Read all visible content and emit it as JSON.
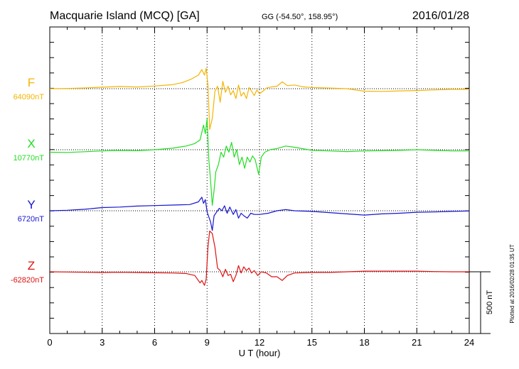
{
  "header": {
    "station": "Macquarie Island (MCQ)  [GA]",
    "coords": "GG (-54.50°, 158.95°)",
    "date": "2016/01/28"
  },
  "plot_note": "Plotted at 2016/02/28 01:35 UT",
  "chart_data": {
    "type": "line",
    "xlabel": "U T (hour)",
    "xlim": [
      0,
      24
    ],
    "xticks": [
      0,
      3,
      6,
      9,
      12,
      15,
      18,
      21,
      24
    ],
    "scale_bar": {
      "label": "500 nT",
      "value_nT": 500
    },
    "units": "nT",
    "series": [
      {
        "name": "F",
        "baseline_label": "64090nT",
        "baseline": 64090,
        "color": "#f5b400",
        "points": [
          [
            0,
            0
          ],
          [
            1,
            2
          ],
          [
            2,
            6
          ],
          [
            3,
            12
          ],
          [
            4,
            18
          ],
          [
            5,
            14
          ],
          [
            6,
            22
          ],
          [
            7,
            32
          ],
          [
            7.6,
            50
          ],
          [
            8.1,
            78
          ],
          [
            8.5,
            110
          ],
          [
            8.7,
            155
          ],
          [
            8.85,
            110
          ],
          [
            8.95,
            165
          ],
          [
            9.05,
            30
          ],
          [
            9.15,
            -330
          ],
          [
            9.3,
            -240
          ],
          [
            9.45,
            -20
          ],
          [
            9.6,
            20
          ],
          [
            9.75,
            -110
          ],
          [
            9.9,
            60
          ],
          [
            10.05,
            -30
          ],
          [
            10.2,
            20
          ],
          [
            10.35,
            -50
          ],
          [
            10.5,
            -15
          ],
          [
            10.65,
            -80
          ],
          [
            10.8,
            30
          ],
          [
            10.95,
            -60
          ],
          [
            11.1,
            -30
          ],
          [
            11.25,
            -80
          ],
          [
            11.4,
            10
          ],
          [
            11.55,
            -20
          ],
          [
            11.7,
            -55
          ],
          [
            11.85,
            -10
          ],
          [
            12.0,
            -40
          ],
          [
            12.2,
            -20
          ],
          [
            12.4,
            5
          ],
          [
            12.7,
            15
          ],
          [
            13.0,
            20
          ],
          [
            13.3,
            55
          ],
          [
            13.6,
            25
          ],
          [
            14.0,
            30
          ],
          [
            14.5,
            15
          ],
          [
            15,
            10
          ],
          [
            16,
            5
          ],
          [
            17,
            0
          ],
          [
            18,
            -20
          ],
          [
            19,
            -22
          ],
          [
            20,
            -18
          ],
          [
            21,
            -15
          ],
          [
            22,
            -10
          ],
          [
            23,
            -5
          ],
          [
            24,
            -5
          ]
        ]
      },
      {
        "name": "X",
        "baseline_label": "10770nT",
        "baseline": 10770,
        "color": "#22dd22",
        "points": [
          [
            0,
            -20
          ],
          [
            1,
            -22
          ],
          [
            2,
            -16
          ],
          [
            3,
            -10
          ],
          [
            4,
            -6
          ],
          [
            5,
            -8
          ],
          [
            6,
            0
          ],
          [
            7,
            12
          ],
          [
            7.8,
            30
          ],
          [
            8.3,
            50
          ],
          [
            8.6,
            80
          ],
          [
            8.8,
            200
          ],
          [
            8.9,
            130
          ],
          [
            9.0,
            250
          ],
          [
            9.1,
            -80
          ],
          [
            9.2,
            -250
          ],
          [
            9.3,
            -450
          ],
          [
            9.4,
            -330
          ],
          [
            9.5,
            -180
          ],
          [
            9.65,
            -120
          ],
          [
            9.8,
            -20
          ],
          [
            9.95,
            -60
          ],
          [
            10.1,
            30
          ],
          [
            10.25,
            -20
          ],
          [
            10.4,
            60
          ],
          [
            10.55,
            -60
          ],
          [
            10.7,
            0
          ],
          [
            10.85,
            -120
          ],
          [
            11.0,
            -60
          ],
          [
            11.15,
            -150
          ],
          [
            11.3,
            -60
          ],
          [
            11.45,
            -100
          ],
          [
            11.6,
            -50
          ],
          [
            11.75,
            -80
          ],
          [
            11.95,
            -200
          ],
          [
            12.1,
            -60
          ],
          [
            12.3,
            -20
          ],
          [
            12.6,
            0
          ],
          [
            13,
            10
          ],
          [
            13.5,
            30
          ],
          [
            14,
            20
          ],
          [
            15,
            -5
          ],
          [
            16,
            -10
          ],
          [
            17,
            -15
          ],
          [
            18,
            -10
          ],
          [
            19,
            -8
          ],
          [
            20,
            -5
          ],
          [
            21,
            0
          ],
          [
            22,
            -5
          ],
          [
            23,
            -10
          ],
          [
            24,
            -10
          ]
        ]
      },
      {
        "name": "Y",
        "baseline_label": "6720nT",
        "baseline": 6720,
        "color": "#1515d0",
        "points": [
          [
            0,
            0
          ],
          [
            1,
            4
          ],
          [
            2,
            12
          ],
          [
            3,
            26
          ],
          [
            4,
            30
          ],
          [
            5,
            38
          ],
          [
            6,
            42
          ],
          [
            7,
            46
          ],
          [
            8,
            50
          ],
          [
            8.5,
            72
          ],
          [
            8.7,
            110
          ],
          [
            8.8,
            60
          ],
          [
            8.9,
            90
          ],
          [
            9.0,
            -10
          ],
          [
            9.1,
            -50
          ],
          [
            9.2,
            -90
          ],
          [
            9.3,
            -160
          ],
          [
            9.4,
            -40
          ],
          [
            9.55,
            -10
          ],
          [
            9.7,
            20
          ],
          [
            9.85,
            0
          ],
          [
            10.0,
            40
          ],
          [
            10.15,
            -20
          ],
          [
            10.3,
            30
          ],
          [
            10.5,
            -30
          ],
          [
            10.65,
            10
          ],
          [
            10.8,
            -60
          ],
          [
            10.95,
            -20
          ],
          [
            11.1,
            -40
          ],
          [
            11.3,
            -60
          ],
          [
            11.5,
            -20
          ],
          [
            11.7,
            -30
          ],
          [
            12,
            -30
          ],
          [
            12.5,
            -20
          ],
          [
            13,
            0
          ],
          [
            13.5,
            10
          ],
          [
            14,
            0
          ],
          [
            15,
            -5
          ],
          [
            16,
            -15
          ],
          [
            17,
            -25
          ],
          [
            18,
            -35
          ],
          [
            19,
            -25
          ],
          [
            20,
            -20
          ],
          [
            21,
            -12
          ],
          [
            22,
            -10
          ],
          [
            23,
            -5
          ],
          [
            24,
            -2
          ]
        ]
      },
      {
        "name": "Z",
        "baseline_label": "-62820nT",
        "baseline": -62820,
        "color": "#dd1111",
        "points": [
          [
            0,
            0
          ],
          [
            1,
            -2
          ],
          [
            2,
            -4
          ],
          [
            3,
            -6
          ],
          [
            4,
            -4
          ],
          [
            5,
            -6
          ],
          [
            6,
            -8
          ],
          [
            7,
            -10
          ],
          [
            7.8,
            -14
          ],
          [
            8.3,
            -30
          ],
          [
            8.6,
            -90
          ],
          [
            8.7,
            -70
          ],
          [
            8.85,
            -110
          ],
          [
            8.95,
            -60
          ],
          [
            9.05,
            200
          ],
          [
            9.15,
            330
          ],
          [
            9.3,
            310
          ],
          [
            9.45,
            200
          ],
          [
            9.6,
            30
          ],
          [
            9.75,
            10
          ],
          [
            9.9,
            -40
          ],
          [
            10.05,
            20
          ],
          [
            10.2,
            -30
          ],
          [
            10.35,
            -20
          ],
          [
            10.5,
            -80
          ],
          [
            10.65,
            -30
          ],
          [
            10.8,
            50
          ],
          [
            10.95,
            -10
          ],
          [
            11.1,
            40
          ],
          [
            11.25,
            10
          ],
          [
            11.4,
            30
          ],
          [
            11.55,
            -10
          ],
          [
            11.7,
            10
          ],
          [
            11.9,
            -30
          ],
          [
            12.1,
            0
          ],
          [
            12.4,
            -10
          ],
          [
            12.7,
            -40
          ],
          [
            13.0,
            -40
          ],
          [
            13.3,
            -70
          ],
          [
            13.6,
            -30
          ],
          [
            14,
            -10
          ],
          [
            15,
            -5
          ],
          [
            16,
            -5
          ],
          [
            17,
            0
          ],
          [
            18,
            5
          ],
          [
            19,
            5
          ],
          [
            20,
            5
          ],
          [
            21,
            5
          ],
          [
            22,
            2
          ],
          [
            23,
            0
          ],
          [
            24,
            0
          ]
        ]
      }
    ]
  }
}
